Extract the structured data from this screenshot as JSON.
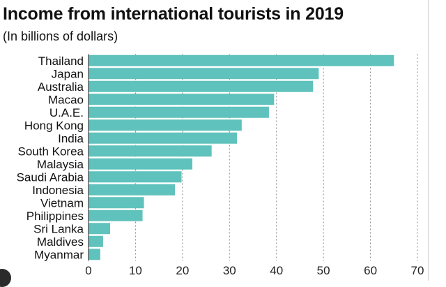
{
  "chart_data": {
    "type": "bar",
    "orientation": "horizontal",
    "title": "Income from international tourists in 2019",
    "subtitle": "(In billions of dollars)",
    "categories": [
      "Thailand",
      "Japan",
      "Australia",
      "Macao",
      "U.A.E.",
      "Hong Kong",
      "India",
      "South Korea",
      "Malaysia",
      "Saudi Arabia",
      "Indonesia",
      "Vietnam",
      "Philippines",
      "Sri Lanka",
      "Maldives",
      "Myanmar"
    ],
    "values": [
      65.0,
      49.0,
      47.8,
      39.5,
      38.4,
      32.6,
      31.6,
      26.2,
      22.1,
      19.8,
      18.4,
      11.8,
      11.5,
      4.6,
      3.1,
      2.5
    ],
    "xticks": [
      0,
      10,
      20,
      30,
      40,
      50,
      60,
      70
    ],
    "xlim": [
      0,
      70
    ],
    "grid": true,
    "bar_color": "#5fc2bc"
  }
}
